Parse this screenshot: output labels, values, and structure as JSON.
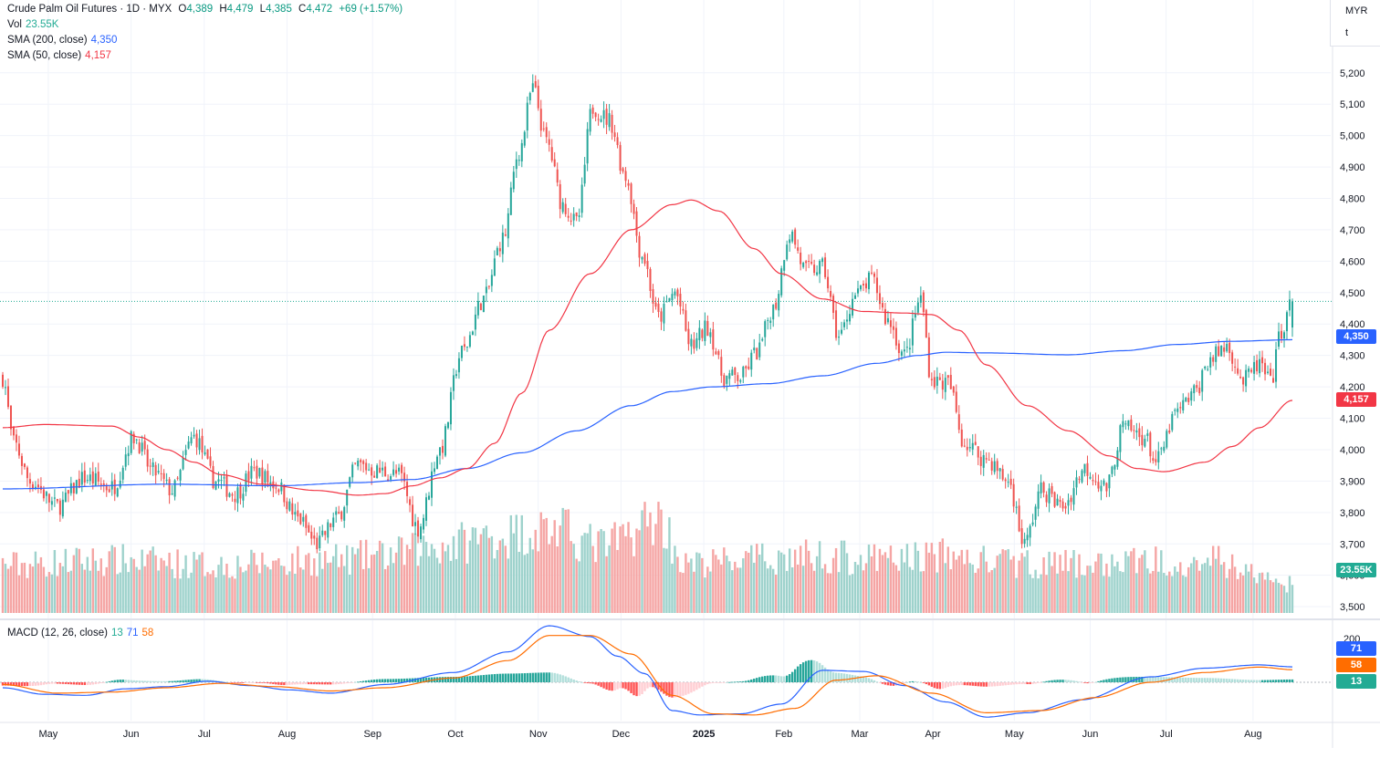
{
  "legend": {
    "symbol": "Crude Palm Oil Futures · 1D · MYX",
    "o_label": "O",
    "o_value": "4,389",
    "h_label": "H",
    "h_value": "4,479",
    "l_label": "L",
    "l_value": "4,385",
    "c_label": "C",
    "c_value": "4,472",
    "change": "+69 (+1.57%)",
    "vol_label": "Vol",
    "vol_value": "23.55K",
    "sma200_label": "SMA (200, close)",
    "sma200_value": "4,350",
    "sma50_label": "SMA (50, close)",
    "sma50_value": "4,157",
    "macd_label": "MACD (12, 26, close)",
    "macd_hist": "13",
    "macd_line": "71",
    "macd_signal": "58"
  },
  "currency": {
    "code": "MYR",
    "unit": "t"
  },
  "tags": {
    "sma200": "4,350",
    "sma50": "4,157",
    "volume": "23.55K",
    "macd_line": "71",
    "macd_signal": "58",
    "macd_hist": "13"
  },
  "colors": {
    "up": "#26a69a",
    "down": "#ef5350",
    "sma200": "#2962ff",
    "sma50": "#f23645",
    "macd_line": "#2962ff",
    "macd_signal": "#ff6d00",
    "vol_up": "#9ed2cc",
    "vol_down": "#f5a5a4"
  },
  "chart_data": {
    "type": "candlestick",
    "price_ticks": [
      "5,200",
      "5,100",
      "5,000",
      "4,900",
      "4,800",
      "4,700",
      "4,600",
      "4,500",
      "4,400",
      "4,300",
      "4,200",
      "4,100",
      "4,000",
      "3,900",
      "3,800",
      "3,700",
      "3,600",
      "3,500"
    ],
    "price_ylim": [
      3480,
      5240
    ],
    "macd_ticks": [
      "200"
    ],
    "months": [
      {
        "label": "May",
        "pos": 0.035
      },
      {
        "label": "Jun",
        "pos": 0.095
      },
      {
        "label": "Jul",
        "pos": 0.148
      },
      {
        "label": "Aug",
        "pos": 0.208
      },
      {
        "label": "Sep",
        "pos": 0.27
      },
      {
        "label": "Oct",
        "pos": 0.33
      },
      {
        "label": "Nov",
        "pos": 0.39
      },
      {
        "label": "Dec",
        "pos": 0.45
      },
      {
        "label": "2025",
        "pos": 0.51
      },
      {
        "label": "Feb",
        "pos": 0.568
      },
      {
        "label": "Mar",
        "pos": 0.623
      },
      {
        "label": "Apr",
        "pos": 0.676
      },
      {
        "label": "May",
        "pos": 0.735
      },
      {
        "label": "Jun",
        "pos": 0.79
      },
      {
        "label": "Jul",
        "pos": 0.845
      },
      {
        "label": "Aug",
        "pos": 0.908
      }
    ],
    "close_anchors": [
      [
        0,
        4230
      ],
      [
        4,
        4020
      ],
      [
        10,
        3900
      ],
      [
        20,
        3820
      ],
      [
        30,
        3910
      ],
      [
        40,
        3880
      ],
      [
        48,
        4040
      ],
      [
        55,
        3930
      ],
      [
        62,
        3870
      ],
      [
        70,
        4040
      ],
      [
        78,
        3900
      ],
      [
        85,
        3860
      ],
      [
        92,
        3930
      ],
      [
        100,
        3890
      ],
      [
        108,
        3780
      ],
      [
        115,
        3700
      ],
      [
        122,
        3780
      ],
      [
        130,
        3950
      ],
      [
        138,
        3930
      ],
      [
        145,
        3920
      ],
      [
        152,
        3750
      ],
      [
        160,
        4000
      ],
      [
        168,
        4310
      ],
      [
        176,
        4480
      ],
      [
        183,
        4670
      ],
      [
        189,
        4950
      ],
      [
        194,
        5150
      ],
      [
        199,
        4980
      ],
      [
        205,
        4780
      ],
      [
        210,
        4720
      ],
      [
        216,
        5090
      ],
      [
        222,
        5050
      ],
      [
        228,
        4870
      ],
      [
        234,
        4620
      ],
      [
        240,
        4420
      ],
      [
        246,
        4500
      ],
      [
        252,
        4330
      ],
      [
        258,
        4390
      ],
      [
        264,
        4230
      ],
      [
        270,
        4230
      ],
      [
        276,
        4310
      ],
      [
        282,
        4450
      ],
      [
        288,
        4690
      ],
      [
        294,
        4570
      ],
      [
        300,
        4580
      ],
      [
        306,
        4360
      ],
      [
        312,
        4490
      ],
      [
        318,
        4540
      ],
      [
        324,
        4410
      ],
      [
        330,
        4300
      ],
      [
        336,
        4480
      ],
      [
        340,
        4220
      ],
      [
        346,
        4210
      ],
      [
        352,
        4020
      ],
      [
        360,
        3970
      ],
      [
        368,
        3900
      ],
      [
        374,
        3700
      ],
      [
        380,
        3870
      ],
      [
        388,
        3820
      ],
      [
        396,
        3940
      ],
      [
        404,
        3880
      ],
      [
        410,
        4070
      ],
      [
        418,
        4040
      ],
      [
        422,
        3960
      ],
      [
        430,
        4120
      ],
      [
        436,
        4180
      ],
      [
        442,
        4290
      ],
      [
        448,
        4330
      ],
      [
        454,
        4220
      ],
      [
        460,
        4270
      ],
      [
        464,
        4210
      ],
      [
        468,
        4380
      ],
      [
        472,
        4472
      ]
    ],
    "sma200_anchors": [
      [
        0,
        3875
      ],
      [
        60,
        3890
      ],
      [
        100,
        3885
      ],
      [
        130,
        3895
      ],
      [
        150,
        3905
      ],
      [
        170,
        3940
      ],
      [
        190,
        3990
      ],
      [
        210,
        4060
      ],
      [
        230,
        4140
      ],
      [
        245,
        4185
      ],
      [
        260,
        4200
      ],
      [
        280,
        4210
      ],
      [
        300,
        4235
      ],
      [
        320,
        4275
      ],
      [
        335,
        4300
      ],
      [
        345,
        4310
      ],
      [
        360,
        4308
      ],
      [
        390,
        4302
      ],
      [
        410,
        4315
      ],
      [
        430,
        4335
      ],
      [
        450,
        4345
      ],
      [
        472,
        4350
      ]
    ],
    "sma50_anchors": [
      [
        0,
        4070
      ],
      [
        15,
        4080
      ],
      [
        40,
        4075
      ],
      [
        50,
        4040
      ],
      [
        60,
        4000
      ],
      [
        70,
        3960
      ],
      [
        80,
        3920
      ],
      [
        95,
        3890
      ],
      [
        115,
        3870
      ],
      [
        130,
        3855
      ],
      [
        140,
        3860
      ],
      [
        150,
        3885
      ],
      [
        160,
        3910
      ],
      [
        170,
        3940
      ],
      [
        180,
        4020
      ],
      [
        190,
        4180
      ],
      [
        200,
        4380
      ],
      [
        215,
        4560
      ],
      [
        230,
        4700
      ],
      [
        245,
        4780
      ],
      [
        252,
        4795
      ],
      [
        262,
        4760
      ],
      [
        275,
        4640
      ],
      [
        285,
        4560
      ],
      [
        300,
        4480
      ],
      [
        315,
        4440
      ],
      [
        330,
        4435
      ],
      [
        340,
        4430
      ],
      [
        350,
        4380
      ],
      [
        360,
        4270
      ],
      [
        375,
        4140
      ],
      [
        390,
        4060
      ],
      [
        405,
        3980
      ],
      [
        415,
        3940
      ],
      [
        425,
        3930
      ],
      [
        440,
        3960
      ],
      [
        450,
        4010
      ],
      [
        460,
        4070
      ],
      [
        472,
        4157
      ]
    ],
    "vol_anchors": [
      [
        0,
        0.5
      ],
      [
        40,
        0.55
      ],
      [
        80,
        0.5
      ],
      [
        120,
        0.55
      ],
      [
        140,
        0.6
      ],
      [
        160,
        0.7
      ],
      [
        180,
        0.8
      ],
      [
        200,
        0.88
      ],
      [
        220,
        0.7
      ],
      [
        240,
        0.98
      ],
      [
        250,
        0.5
      ],
      [
        270,
        0.55
      ],
      [
        300,
        0.6
      ],
      [
        320,
        0.55
      ],
      [
        340,
        0.6
      ],
      [
        370,
        0.52
      ],
      [
        400,
        0.5
      ],
      [
        420,
        0.55
      ],
      [
        440,
        0.55
      ],
      [
        472,
        0.3
      ]
    ],
    "macd_anchors": [
      [
        0,
        -25
      ],
      [
        15,
        -55
      ],
      [
        30,
        -60
      ],
      [
        45,
        -30
      ],
      [
        60,
        -20
      ],
      [
        75,
        5
      ],
      [
        90,
        -15
      ],
      [
        105,
        -35
      ],
      [
        120,
        -50
      ],
      [
        140,
        -10
      ],
      [
        165,
        45
      ],
      [
        185,
        140
      ],
      [
        200,
        260
      ],
      [
        215,
        210
      ],
      [
        225,
        120
      ],
      [
        235,
        40
      ],
      [
        245,
        -130
      ],
      [
        255,
        -150
      ],
      [
        270,
        -145
      ],
      [
        285,
        -100
      ],
      [
        300,
        55
      ],
      [
        315,
        50
      ],
      [
        330,
        -15
      ],
      [
        345,
        -90
      ],
      [
        360,
        -160
      ],
      [
        375,
        -140
      ],
      [
        395,
        -80
      ],
      [
        420,
        25
      ],
      [
        440,
        65
      ],
      [
        460,
        80
      ],
      [
        472,
        71
      ]
    ],
    "signal_anchors": [
      [
        0,
        -10
      ],
      [
        20,
        -50
      ],
      [
        40,
        -45
      ],
      [
        60,
        -25
      ],
      [
        80,
        -5
      ],
      [
        100,
        -20
      ],
      [
        120,
        -40
      ],
      [
        140,
        -25
      ],
      [
        165,
        20
      ],
      [
        185,
        100
      ],
      [
        200,
        215
      ],
      [
        215,
        215
      ],
      [
        230,
        130
      ],
      [
        245,
        -60
      ],
      [
        260,
        -145
      ],
      [
        275,
        -150
      ],
      [
        290,
        -120
      ],
      [
        305,
        10
      ],
      [
        320,
        30
      ],
      [
        340,
        -50
      ],
      [
        360,
        -140
      ],
      [
        380,
        -130
      ],
      [
        400,
        -70
      ],
      [
        420,
        0
      ],
      [
        440,
        45
      ],
      [
        460,
        70
      ],
      [
        472,
        58
      ]
    ],
    "histogram_last": 13
  }
}
